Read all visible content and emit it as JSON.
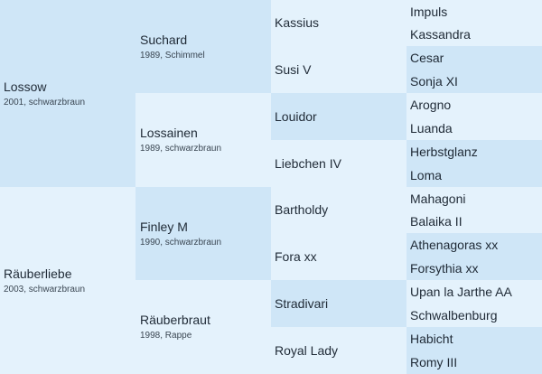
{
  "gen1": [
    {
      "name": "Lossow",
      "meta": "2001, schwarzbraun"
    },
    {
      "name": "Räuberliebe",
      "meta": "2003, schwarzbraun"
    }
  ],
  "gen2": [
    {
      "name": "Suchard",
      "meta": "1989, Schimmel"
    },
    {
      "name": "Lossainen",
      "meta": "1989, schwarzbraun"
    },
    {
      "name": "Finley M",
      "meta": "1990, schwarzbraun"
    },
    {
      "name": "Räuberbraut",
      "meta": "1998, Rappe"
    }
  ],
  "gen3": [
    {
      "name": "Kassius"
    },
    {
      "name": "Susi V"
    },
    {
      "name": "Louidor"
    },
    {
      "name": "Liebchen IV"
    },
    {
      "name": "Bartholdy"
    },
    {
      "name": "Fora xx"
    },
    {
      "name": "Stradivari"
    },
    {
      "name": "Royal Lady"
    }
  ],
  "gen4": [
    {
      "name": "Impuls"
    },
    {
      "name": "Kassandra"
    },
    {
      "name": "Cesar"
    },
    {
      "name": "Sonja XI"
    },
    {
      "name": "Arogno"
    },
    {
      "name": "Luanda"
    },
    {
      "name": "Herbstglanz"
    },
    {
      "name": "Loma"
    },
    {
      "name": "Mahagoni"
    },
    {
      "name": "Balaika II"
    },
    {
      "name": "Athenagoras xx"
    },
    {
      "name": "Forsythia xx"
    },
    {
      "name": "Upan la Jarthe AA"
    },
    {
      "name": "Schwalbenburg"
    },
    {
      "name": "Habicht"
    },
    {
      "name": "Romy III"
    }
  ],
  "colors": {
    "dark": "#cfe6f7",
    "light": "#e4f2fc"
  }
}
